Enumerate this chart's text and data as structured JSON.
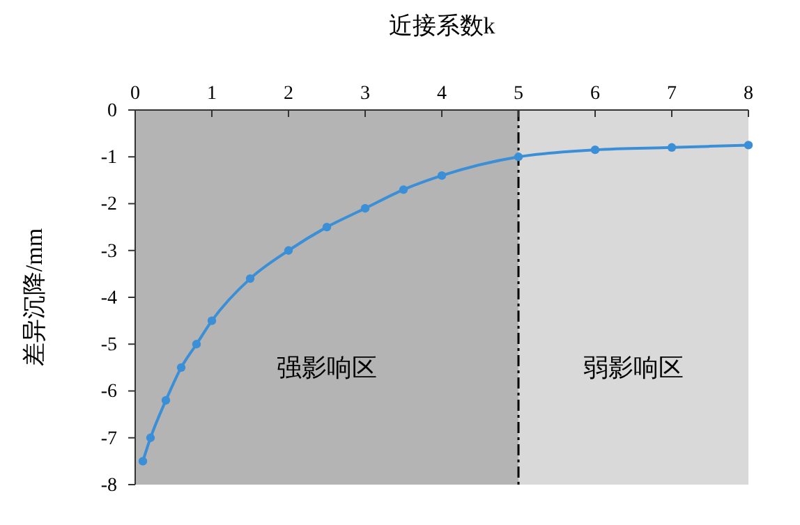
{
  "chart_data": {
    "type": "line",
    "xlabel": "近接系数k",
    "ylabel": "差异沉降/mm",
    "x": [
      0.1,
      0.2,
      0.4,
      0.6,
      0.8,
      1,
      1.5,
      2,
      2.5,
      3,
      3.5,
      4,
      5,
      6,
      7,
      8
    ],
    "series": [
      {
        "color": "#3a8fd6",
        "values": [
          -7.5,
          -7.0,
          -6.2,
          -5.5,
          -5.0,
          -4.5,
          -3.6,
          -3.0,
          -2.5,
          -2.1,
          -1.7,
          -1.4,
          -1.0,
          -0.85,
          -0.8,
          -0.75
        ]
      }
    ],
    "xlim": [
      0,
      8
    ],
    "xticks": [
      0,
      1,
      2,
      3,
      4,
      5,
      6,
      7,
      8
    ],
    "ylim": [
      -8,
      0
    ],
    "yticks": [
      0,
      -1,
      -2,
      -3,
      -4,
      -5,
      -6,
      -7,
      -8
    ],
    "bands": [
      {
        "axis": "x",
        "from": 0,
        "to": 5,
        "label": "强影响区",
        "color": "#b4b4b4"
      },
      {
        "axis": "x",
        "from": 5,
        "to": 8,
        "label": "弱影响区",
        "color": "#d9d9d9"
      }
    ],
    "ref_lines": [
      {
        "axis": "x",
        "value": 5,
        "line_style": "dashdot",
        "color": "#000000"
      }
    ],
    "marker": "circle",
    "grid": false
  }
}
